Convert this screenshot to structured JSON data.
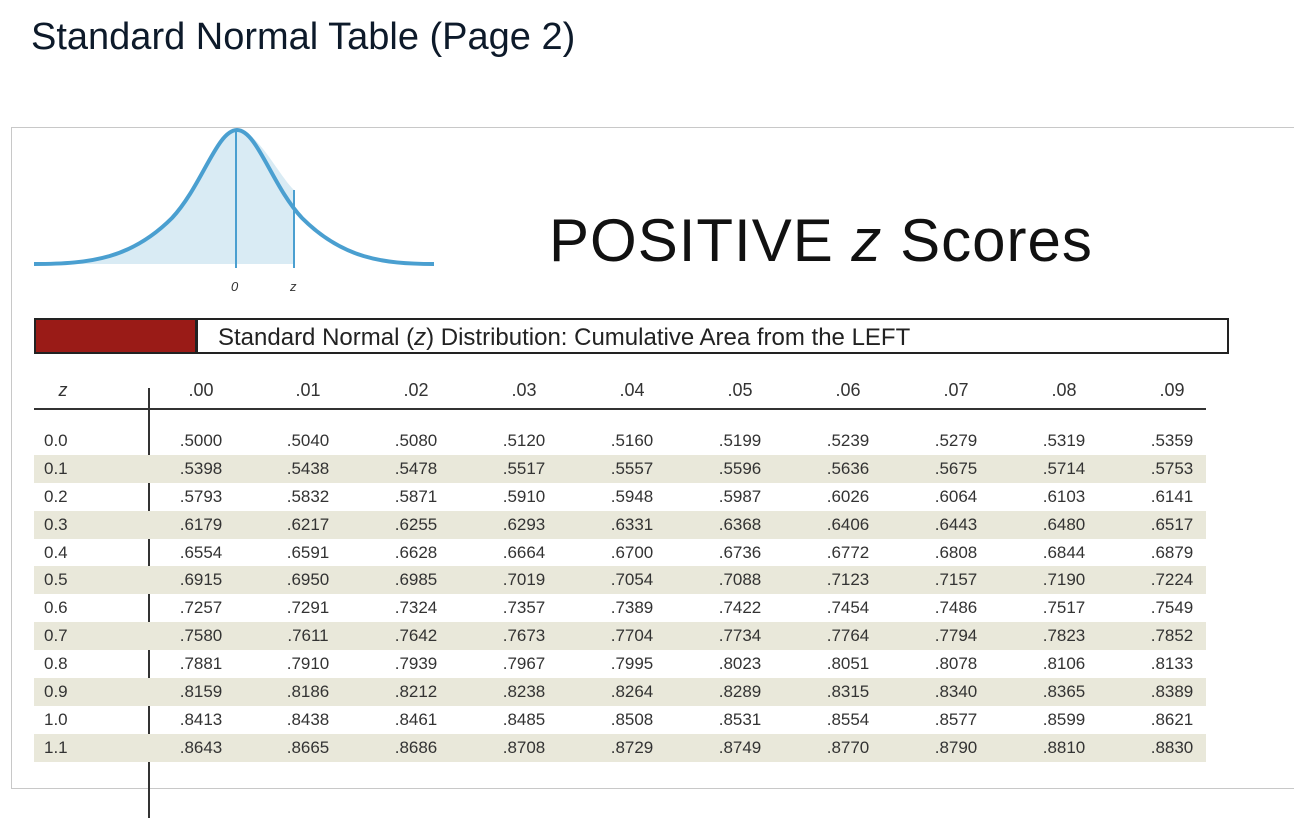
{
  "page_title": "Standard Normal Table (Page 2)",
  "heading": {
    "prefix": "POSITIVE ",
    "z": "z",
    "suffix": " Scores"
  },
  "diagram": {
    "label_zero": "0",
    "label_z": "z"
  },
  "caption": {
    "part1": "Standard Normal (",
    "z": "z",
    "part2": ") Distribution: Cumulative Area from the LEFT"
  },
  "colors": {
    "header_tab": "#9a1b17",
    "curve": "#4a9fd0",
    "curve_fill": "#d9ebf4",
    "row_shade": "#e9e8da"
  },
  "table": {
    "z_header": "z",
    "columns": [
      ".00",
      ".01",
      ".02",
      ".03",
      ".04",
      ".05",
      ".06",
      ".07",
      ".08",
      ".09"
    ],
    "rows": [
      {
        "z": "0.0",
        "values": [
          ".5000",
          ".5040",
          ".5080",
          ".5120",
          ".5160",
          ".5199",
          ".5239",
          ".5279",
          ".5319",
          ".5359"
        ]
      },
      {
        "z": "0.1",
        "values": [
          ".5398",
          ".5438",
          ".5478",
          ".5517",
          ".5557",
          ".5596",
          ".5636",
          ".5675",
          ".5714",
          ".5753"
        ]
      },
      {
        "z": "0.2",
        "values": [
          ".5793",
          ".5832",
          ".5871",
          ".5910",
          ".5948",
          ".5987",
          ".6026",
          ".6064",
          ".6103",
          ".6141"
        ]
      },
      {
        "z": "0.3",
        "values": [
          ".6179",
          ".6217",
          ".6255",
          ".6293",
          ".6331",
          ".6368",
          ".6406",
          ".6443",
          ".6480",
          ".6517"
        ]
      },
      {
        "z": "0.4",
        "values": [
          ".6554",
          ".6591",
          ".6628",
          ".6664",
          ".6700",
          ".6736",
          ".6772",
          ".6808",
          ".6844",
          ".6879"
        ]
      },
      {
        "z": "0.5",
        "values": [
          ".6915",
          ".6950",
          ".6985",
          ".7019",
          ".7054",
          ".7088",
          ".7123",
          ".7157",
          ".7190",
          ".7224"
        ]
      },
      {
        "z": "0.6",
        "values": [
          ".7257",
          ".7291",
          ".7324",
          ".7357",
          ".7389",
          ".7422",
          ".7454",
          ".7486",
          ".7517",
          ".7549"
        ]
      },
      {
        "z": "0.7",
        "values": [
          ".7580",
          ".7611",
          ".7642",
          ".7673",
          ".7704",
          ".7734",
          ".7764",
          ".7794",
          ".7823",
          ".7852"
        ]
      },
      {
        "z": "0.8",
        "values": [
          ".7881",
          ".7910",
          ".7939",
          ".7967",
          ".7995",
          ".8023",
          ".8051",
          ".8078",
          ".8106",
          ".8133"
        ]
      },
      {
        "z": "0.9",
        "values": [
          ".8159",
          ".8186",
          ".8212",
          ".8238",
          ".8264",
          ".8289",
          ".8315",
          ".8340",
          ".8365",
          ".8389"
        ]
      },
      {
        "z": "1.0",
        "values": [
          ".8413",
          ".8438",
          ".8461",
          ".8485",
          ".8508",
          ".8531",
          ".8554",
          ".8577",
          ".8599",
          ".8621"
        ]
      },
      {
        "z": "1.1",
        "values": [
          ".8643",
          ".8665",
          ".8686",
          ".8708",
          ".8729",
          ".8749",
          ".8770",
          ".8790",
          ".8810",
          ".8830"
        ]
      }
    ]
  }
}
